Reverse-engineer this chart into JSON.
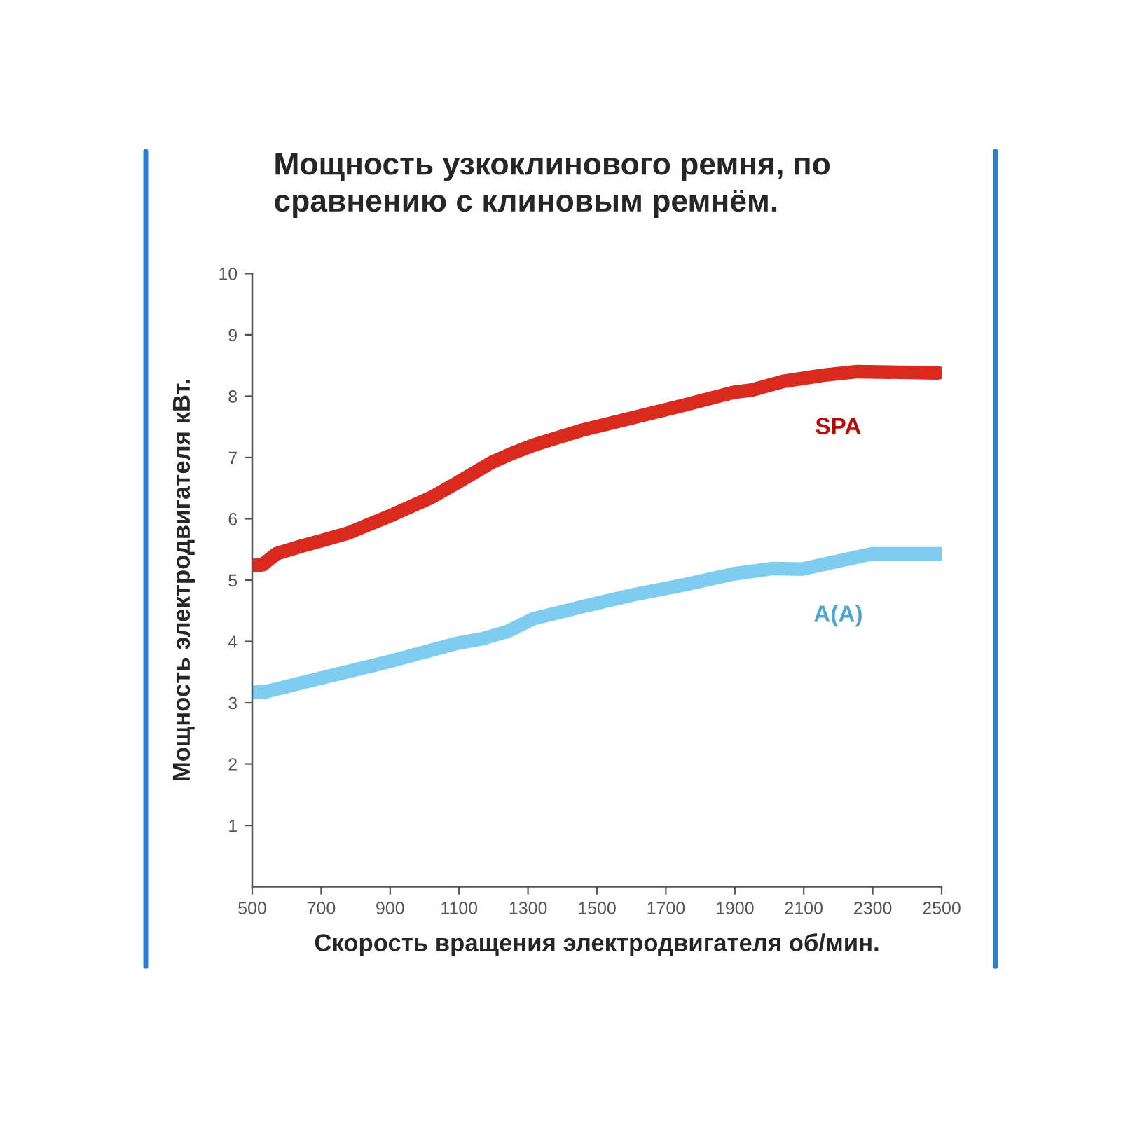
{
  "chart_data": {
    "type": "line",
    "title": "Мощность узкоклинового ремня, по\nсравнению с клиновым ремнём.",
    "xlabel": "Скорость вращения электродвигателя об/мин.",
    "ylabel": "Мощность электродвигателя кВт.",
    "xlim": [
      500,
      2500
    ],
    "xticks": [
      500,
      700,
      900,
      1100,
      1300,
      1500,
      1700,
      1900,
      2100,
      2300,
      2500
    ],
    "ylim": [
      0,
      10
    ],
    "yticks": [
      1,
      2,
      3,
      4,
      5,
      6,
      7,
      8,
      9,
      10
    ],
    "series": [
      {
        "name": "SPA",
        "color": "#da2a1f",
        "x": [
          505,
          530,
          570,
          640,
          705,
          775,
          905,
          1020,
          1095,
          1195,
          1260,
          1315,
          1460,
          1605,
          1750,
          1895,
          1950,
          2040,
          2155,
          2255,
          2490
        ],
        "values": [
          5.24,
          5.25,
          5.43,
          5.55,
          5.65,
          5.76,
          6.06,
          6.35,
          6.59,
          6.92,
          7.08,
          7.2,
          7.45,
          7.65,
          7.85,
          8.06,
          8.1,
          8.24,
          8.34,
          8.4,
          8.38
        ]
      },
      {
        "name": "A(A)",
        "color": "#7ecdf1",
        "x": [
          500,
          540,
          705,
          875,
          995,
          1095,
          1165,
          1240,
          1315,
          1460,
          1605,
          1750,
          1895,
          2010,
          2095,
          2185,
          2300,
          2495
        ],
        "values": [
          3.17,
          3.18,
          3.41,
          3.64,
          3.82,
          3.97,
          4.04,
          4.16,
          4.37,
          4.57,
          4.76,
          4.92,
          5.1,
          5.19,
          5.18,
          5.29,
          5.43,
          5.43
        ]
      }
    ]
  }
}
